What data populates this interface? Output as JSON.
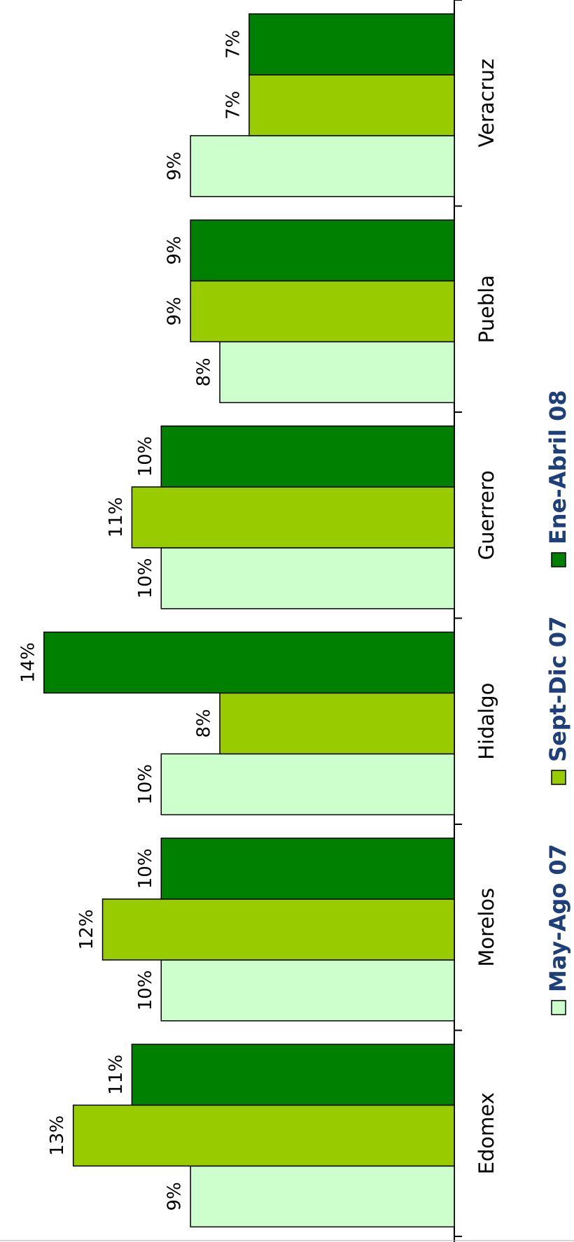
{
  "chart_data": {
    "type": "bar",
    "categories": [
      "Edomex",
      "Morelos",
      "Hidalgo",
      "Guerrero",
      "Puebla",
      "Veracruz"
    ],
    "series": [
      {
        "name": "May-Ago 07",
        "color": "#ccffcc",
        "values": [
          9,
          10,
          10,
          10,
          8,
          9
        ],
        "value_labels": [
          "9%",
          "10%",
          "10%",
          "10%",
          "8%",
          "9%"
        ]
      },
      {
        "name": "Sept-Dic 07",
        "color": "#99cc00",
        "values": [
          13,
          12,
          8,
          11,
          9,
          7
        ],
        "value_labels": [
          "13%",
          "12%",
          "8%",
          "11%",
          "9%",
          "7%"
        ]
      },
      {
        "name": "Ene-Abril 08",
        "color": "#008000",
        "values": [
          11,
          10,
          14,
          10,
          9,
          7
        ],
        "value_labels": [
          "11%",
          "10%",
          "14%",
          "10%",
          "9%",
          "7%"
        ]
      }
    ],
    "ylim": [
      0,
      15.5
    ]
  }
}
